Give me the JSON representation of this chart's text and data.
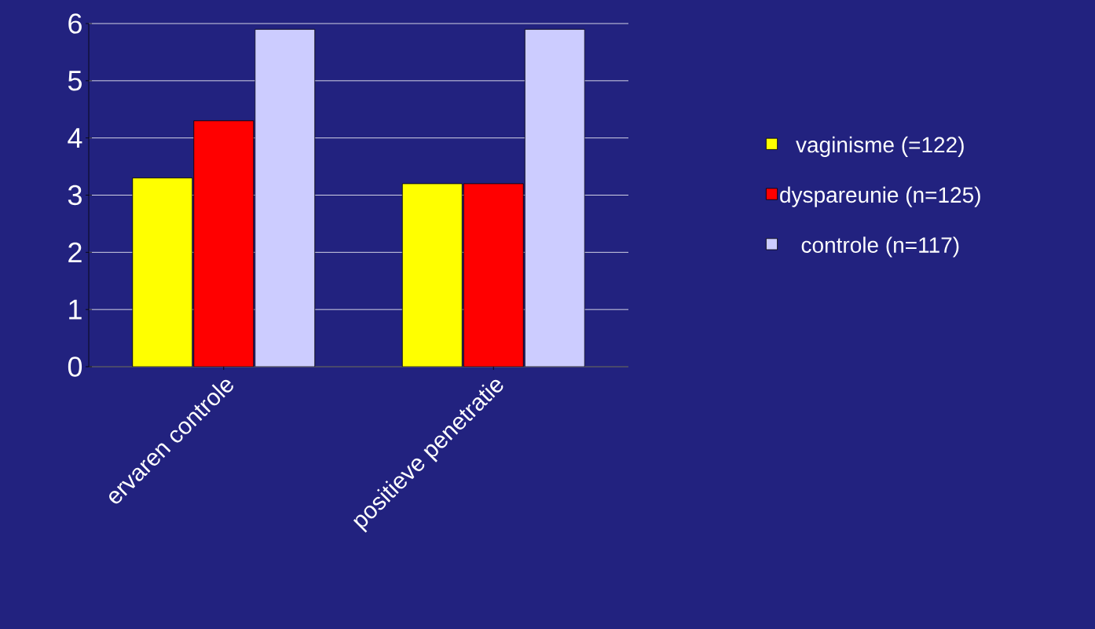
{
  "chart_data": {
    "type": "bar",
    "categories": [
      "ervaren controle",
      "positieve penetratie"
    ],
    "series": [
      {
        "name": "vaginisme (=122)",
        "color": "#ffff00",
        "values": [
          3.3,
          3.2
        ]
      },
      {
        "name": "dyspareunie (n=125)",
        "color": "#ff0000",
        "values": [
          4.3,
          3.2
        ]
      },
      {
        "name": "controle (n=117)",
        "color": "#ccccff",
        "values": [
          5.9,
          5.9
        ]
      }
    ],
    "ylim": [
      0,
      6
    ],
    "yticks": [
      0,
      1,
      2,
      3,
      4,
      5,
      6
    ],
    "grid": "y",
    "legend": "right"
  }
}
